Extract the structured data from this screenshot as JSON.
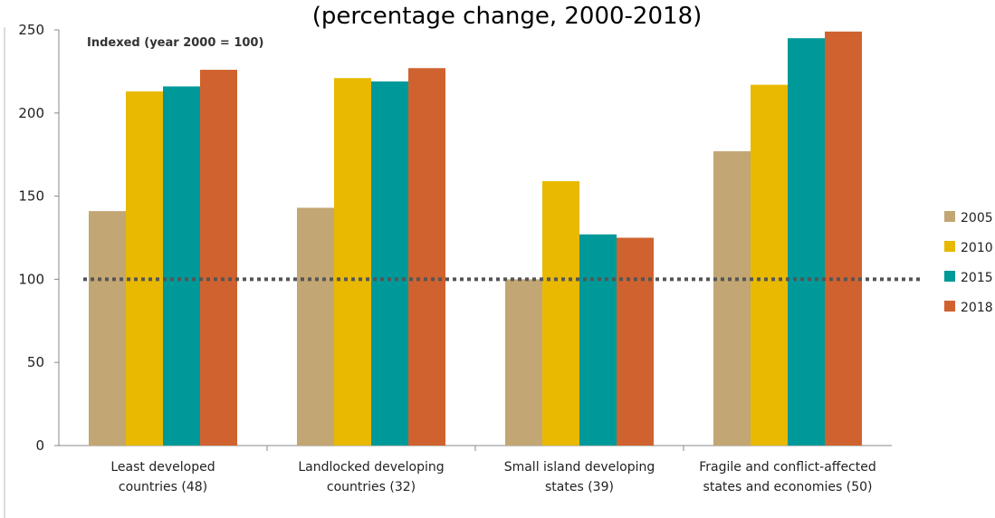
{
  "chart_data": {
    "type": "bar",
    "title": "(percentage change, 2000-2018)",
    "annotation": "Indexed (year 2000 = 100)",
    "categories": [
      [
        "Least developed",
        "countries (48)"
      ],
      [
        "Landlocked developing",
        "countries (32)"
      ],
      [
        "Small island developing",
        "states (39)"
      ],
      [
        "Fragile and conflict-affected",
        "states and economies (50)"
      ]
    ],
    "series": [
      {
        "name": "2005",
        "color": "#C2A673",
        "values": [
          141,
          143,
          100,
          177
        ]
      },
      {
        "name": "2010",
        "color": "#E8B900",
        "values": [
          213,
          221,
          159,
          217
        ]
      },
      {
        "name": "2015",
        "color": "#009999",
        "values": [
          216,
          219,
          127,
          245
        ]
      },
      {
        "name": "2018",
        "color": "#D0622F",
        "values": [
          226,
          227,
          125,
          249
        ]
      }
    ],
    "ylim": [
      0,
      250
    ],
    "yticks": [
      0,
      50,
      100,
      150,
      200,
      250
    ],
    "reference_line": 100,
    "legend_position": "right",
    "grid": false
  }
}
